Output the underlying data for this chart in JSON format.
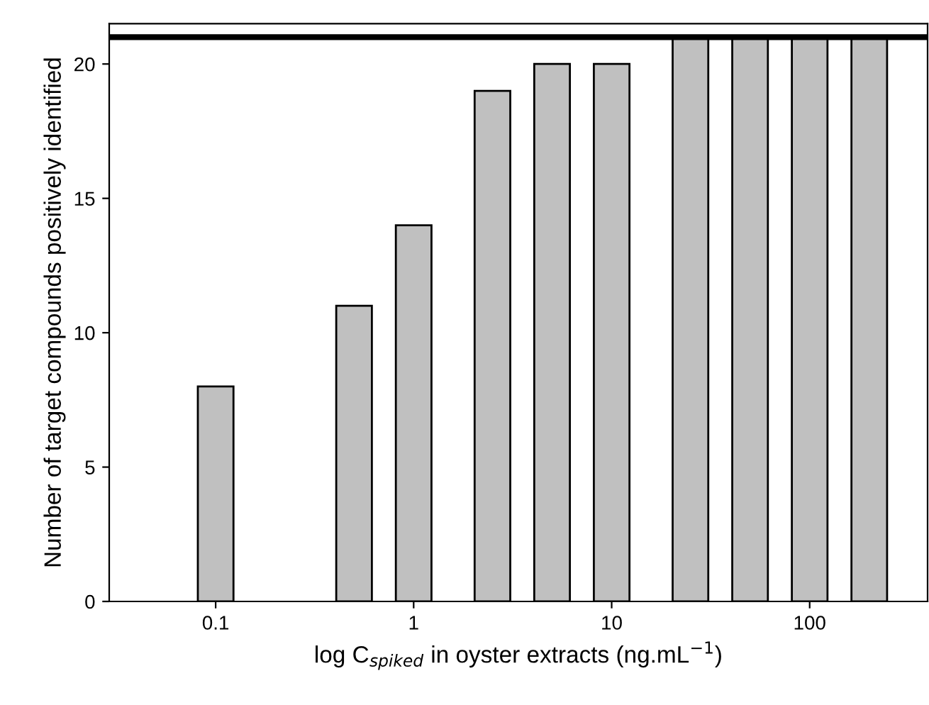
{
  "chart_data": {
    "type": "bar",
    "xlabel": "log C$_{spiked}$ in oyster extracts (ng.mL$^{−1}$)",
    "ylabel": "Number of target compounds positively identified",
    "x": [
      0.1,
      0.5,
      1,
      2.5,
      5,
      10,
      25,
      50,
      100,
      200
    ],
    "values": [
      8,
      11,
      14,
      19,
      20,
      20,
      21,
      21,
      21,
      21
    ],
    "color": "#c0c0c0",
    "log": "x",
    "xlim": [
      0.029,
      394
    ],
    "xticks": [
      0.1,
      1,
      10,
      100
    ],
    "ylim": [
      0,
      21.5
    ],
    "yticks": [
      0,
      5,
      10,
      15,
      20
    ],
    "ref_lines": [
      {
        "axis": "y",
        "value": 21,
        "color": "#000000"
      }
    ],
    "grid": false,
    "legend": false
  }
}
